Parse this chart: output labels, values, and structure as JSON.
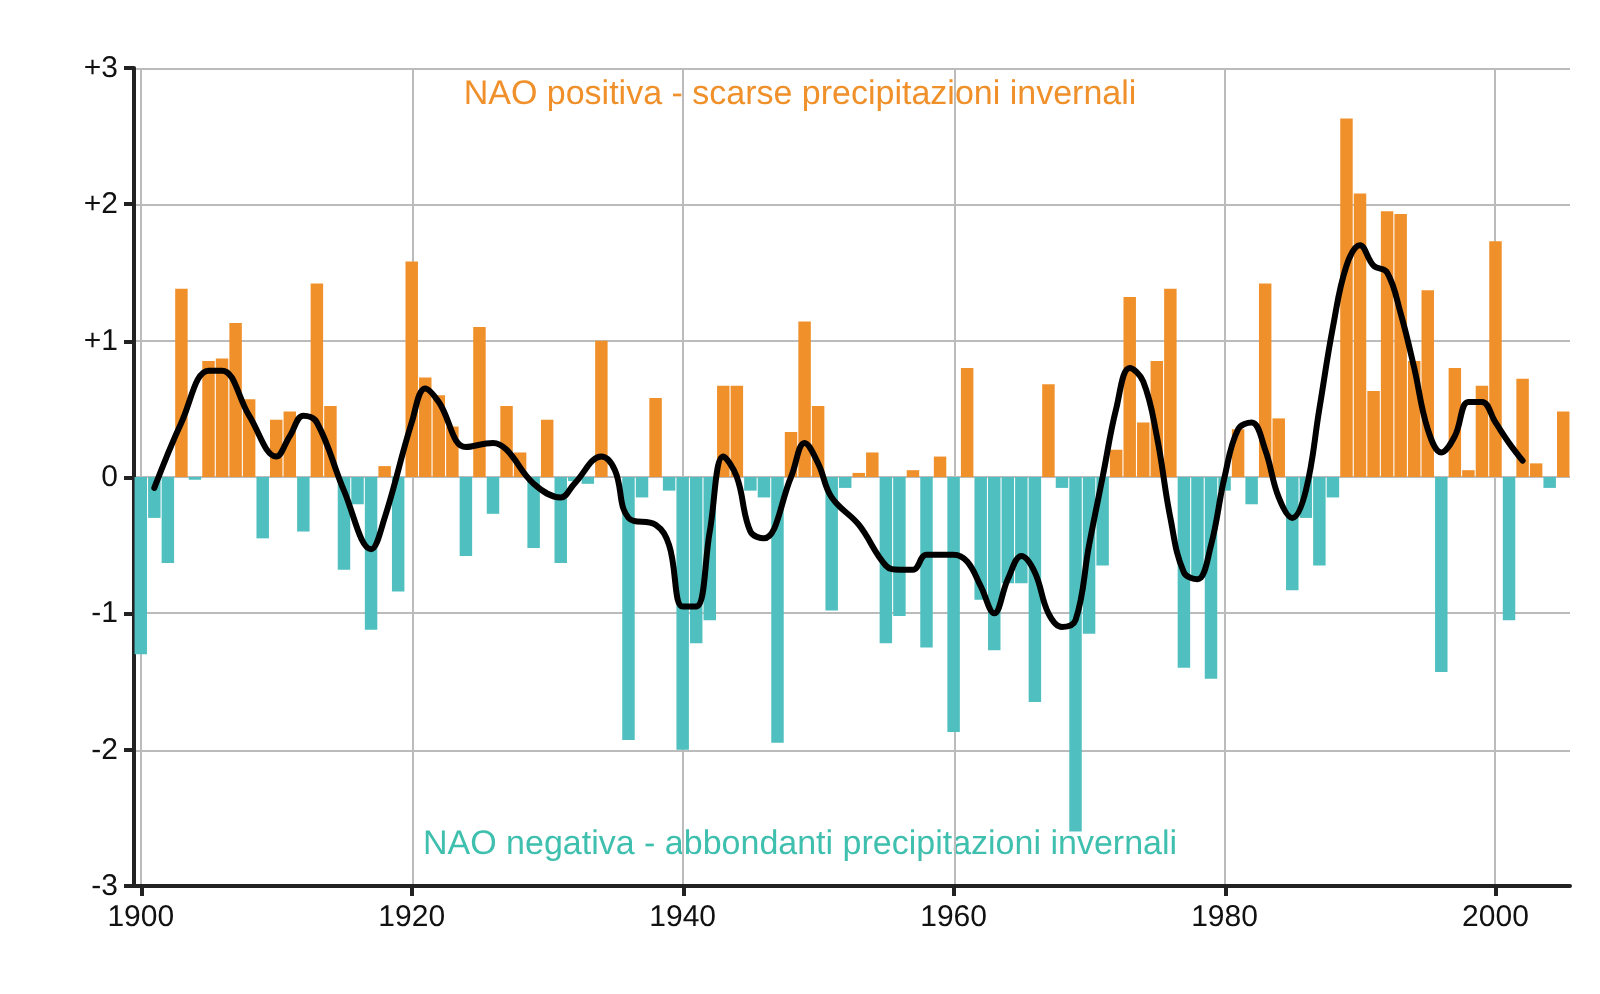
{
  "chart_data": {
    "type": "bar",
    "annotations": [
      "NAO positiva - scarse precipitazioni invernali",
      "NAO negativa - abbondanti precipitazioni invernali"
    ],
    "x": [
      1900,
      1901,
      1902,
      1903,
      1904,
      1905,
      1906,
      1907,
      1908,
      1909,
      1910,
      1911,
      1912,
      1913,
      1914,
      1915,
      1916,
      1917,
      1918,
      1919,
      1920,
      1921,
      1922,
      1923,
      1924,
      1925,
      1926,
      1927,
      1928,
      1929,
      1930,
      1931,
      1932,
      1933,
      1934,
      1935,
      1936,
      1937,
      1938,
      1939,
      1940,
      1941,
      1942,
      1943,
      1944,
      1945,
      1946,
      1947,
      1948,
      1949,
      1950,
      1951,
      1952,
      1953,
      1954,
      1955,
      1956,
      1957,
      1958,
      1959,
      1960,
      1961,
      1962,
      1963,
      1964,
      1965,
      1966,
      1967,
      1968,
      1969,
      1970,
      1971,
      1972,
      1973,
      1974,
      1975,
      1976,
      1977,
      1978,
      1979,
      1980,
      1981,
      1982,
      1983,
      1984,
      1985,
      1986,
      1987,
      1988,
      1989,
      1990,
      1991,
      1992,
      1993,
      1994,
      1995,
      1996,
      1997,
      1998,
      1999,
      2000,
      2001,
      2002,
      2003,
      2004,
      2005
    ],
    "series": [
      {
        "values": [
          -1.3,
          -0.3,
          -0.63,
          1.38,
          -0.02,
          0.85,
          0.87,
          1.13,
          0.57,
          -0.45,
          0.42,
          0.48,
          -0.4,
          1.42,
          0.52,
          -0.68,
          -0.2,
          -1.12,
          0.08,
          -0.84,
          1.58,
          0.73,
          0.6,
          0.37,
          -0.58,
          1.1,
          -0.27,
          0.52,
          0.18,
          -0.52,
          0.42,
          -0.63,
          -0.03,
          -0.05,
          1.0,
          null,
          -1.93,
          -0.15,
          0.58,
          -0.1,
          -2.0,
          -1.22,
          -1.05,
          0.67,
          0.67,
          -0.1,
          -0.15,
          -1.95,
          0.33,
          1.14,
          0.52,
          -0.98,
          -0.08,
          0.03,
          0.18,
          -1.22,
          -1.02,
          0.05,
          -1.25,
          0.15,
          -1.87,
          0.8,
          -0.9,
          -1.27,
          -0.78,
          -0.78,
          -1.65,
          0.68,
          -0.08,
          -2.6,
          -1.15,
          -0.65,
          0.2,
          1.32,
          0.4,
          0.85,
          1.38,
          -1.4,
          -0.75,
          -1.48,
          -0.1,
          0.35,
          -0.2,
          1.42,
          0.43,
          -0.83,
          -0.3,
          -0.65,
          -0.15,
          2.63,
          2.08,
          0.63,
          1.95,
          1.93,
          0.85,
          1.37,
          -1.43,
          0.8,
          0.05,
          0.67,
          1.73,
          -1.05,
          0.72,
          0.1,
          -0.08,
          0.48
        ],
        "colors": [
          "#4fbfbf",
          "#4fbfbf",
          "#4fbfbf",
          "#f0902a",
          "#4fbfbf",
          "#f0902a",
          "#f0902a",
          "#f0902a",
          "#f0902a",
          "#4fbfbf",
          "#f0902a",
          "#f0902a",
          "#4fbfbf",
          "#f0902a",
          "#f0902a",
          "#4fbfbf",
          "#4fbfbf",
          "#4fbfbf",
          "#f0902a",
          "#4fbfbf",
          "#f0902a",
          "#f0902a",
          "#f0902a",
          "#f0902a",
          "#4fbfbf",
          "#f0902a",
          "#4fbfbf",
          "#f0902a",
          "#f0902a",
          "#4fbfbf",
          "#f0902a",
          "#4fbfbf",
          "#4fbfbf",
          "#4fbfbf",
          "#f0902a",
          "#f0902a",
          "#4fbfbf",
          "#4fbfbf",
          "#f0902a",
          "#4fbfbf",
          "#4fbfbf",
          "#4fbfbf",
          "#4fbfbf",
          "#f0902a",
          "#f0902a",
          "#4fbfbf",
          "#4fbfbf",
          "#4fbfbf",
          "#f0902a",
          "#f0902a",
          "#f0902a",
          "#4fbfbf",
          "#4fbfbf",
          "#f0902a",
          "#f0902a",
          "#4fbfbf",
          "#4fbfbf",
          "#f0902a",
          "#4fbfbf",
          "#f0902a",
          "#4fbfbf",
          "#f0902a",
          "#4fbfbf",
          "#4fbfbf",
          "#4fbfbf",
          "#4fbfbf",
          "#4fbfbf",
          "#f0902a",
          "#4fbfbf",
          "#4fbfbf",
          "#4fbfbf",
          "#4fbfbf",
          "#f0902a",
          "#f0902a",
          "#f0902a",
          "#f0902a",
          "#f0902a",
          "#4fbfbf",
          "#4fbfbf",
          "#4fbfbf",
          "#4fbfbf",
          "#f0902a",
          "#4fbfbf",
          "#f0902a",
          "#f0902a",
          "#4fbfbf",
          "#4fbfbf",
          "#4fbfbf",
          "#4fbfbf",
          "#f0902a",
          "#f0902a",
          "#f0902a",
          "#f0902a",
          "#f0902a",
          "#f0902a",
          "#f0902a",
          "#4fbfbf",
          "#f0902a",
          "#f0902a",
          "#f0902a",
          "#f0902a",
          "#4fbfbf",
          "#f0902a",
          "#f0902a",
          "#4fbfbf",
          "#f0902a"
        ]
      },
      {
        "type": "line",
        "color": "#000000",
        "x": [
          1901,
          1903,
          1905,
          1906,
          1908,
          1910,
          1911,
          1912,
          1913,
          1915,
          1917,
          1918,
          1920,
          1921,
          1922,
          1924,
          1926,
          1927,
          1929,
          1931,
          1932,
          1934,
          1935,
          1936,
          1938,
          1939,
          1940,
          1941,
          1942,
          1943,
          1944,
          1945,
          1946,
          1948,
          1949,
          1950,
          1951,
          1953,
          1955,
          1956,
          1957,
          1958,
          1960,
          1961,
          1962,
          1963,
          1964,
          1965,
          1966,
          1967,
          1968,
          1969,
          1970,
          1971,
          1972,
          1973,
          1974,
          1975,
          1976,
          1977,
          1978,
          1979,
          1980,
          1981,
          1982,
          1983,
          1984,
          1985,
          1986,
          1987,
          1988,
          1989,
          1990,
          1991,
          1992,
          1993,
          1994,
          1995,
          1996,
          1997,
          1998,
          1999,
          2000,
          2001,
          2002
        ],
        "values": [
          -0.08,
          0.4,
          0.78,
          0.78,
          0.45,
          0.15,
          0.3,
          0.45,
          0.4,
          -0.1,
          -0.53,
          -0.3,
          0.4,
          0.65,
          0.55,
          0.22,
          0.25,
          0.2,
          -0.05,
          -0.15,
          -0.05,
          0.15,
          0.05,
          -0.3,
          -0.35,
          -0.5,
          -0.95,
          -0.95,
          -0.4,
          0.15,
          0.0,
          -0.4,
          -0.45,
          0.0,
          0.25,
          0.1,
          -0.15,
          -0.35,
          -0.65,
          -0.68,
          -0.68,
          -0.57,
          -0.57,
          -0.62,
          -0.8,
          -1.0,
          -0.75,
          -0.58,
          -0.7,
          -1.0,
          -1.1,
          -1.05,
          -0.5,
          0.0,
          0.5,
          0.8,
          0.7,
          0.3,
          -0.3,
          -0.7,
          -0.75,
          -0.5,
          0.0,
          0.35,
          0.4,
          0.2,
          -0.15,
          -0.3,
          -0.1,
          0.5,
          1.1,
          1.55,
          1.7,
          1.55,
          1.5,
          1.2,
          0.8,
          0.35,
          0.18,
          0.3,
          0.55,
          0.55,
          0.4,
          0.25,
          0.12
        ]
      }
    ],
    "xlim": [
      1899.5,
      2005.5
    ],
    "xticks": [
      1900,
      1920,
      1940,
      1960,
      1980,
      2000
    ],
    "ylim": [
      -3,
      3
    ],
    "yticks": [
      {
        "value": 3,
        "label": "+3"
      },
      {
        "value": 2,
        "label": "+2"
      },
      {
        "value": 1,
        "label": "+1"
      },
      0,
      -1,
      -2,
      -3
    ],
    "grid": true,
    "marker": "none",
    "line_style": "solid"
  }
}
